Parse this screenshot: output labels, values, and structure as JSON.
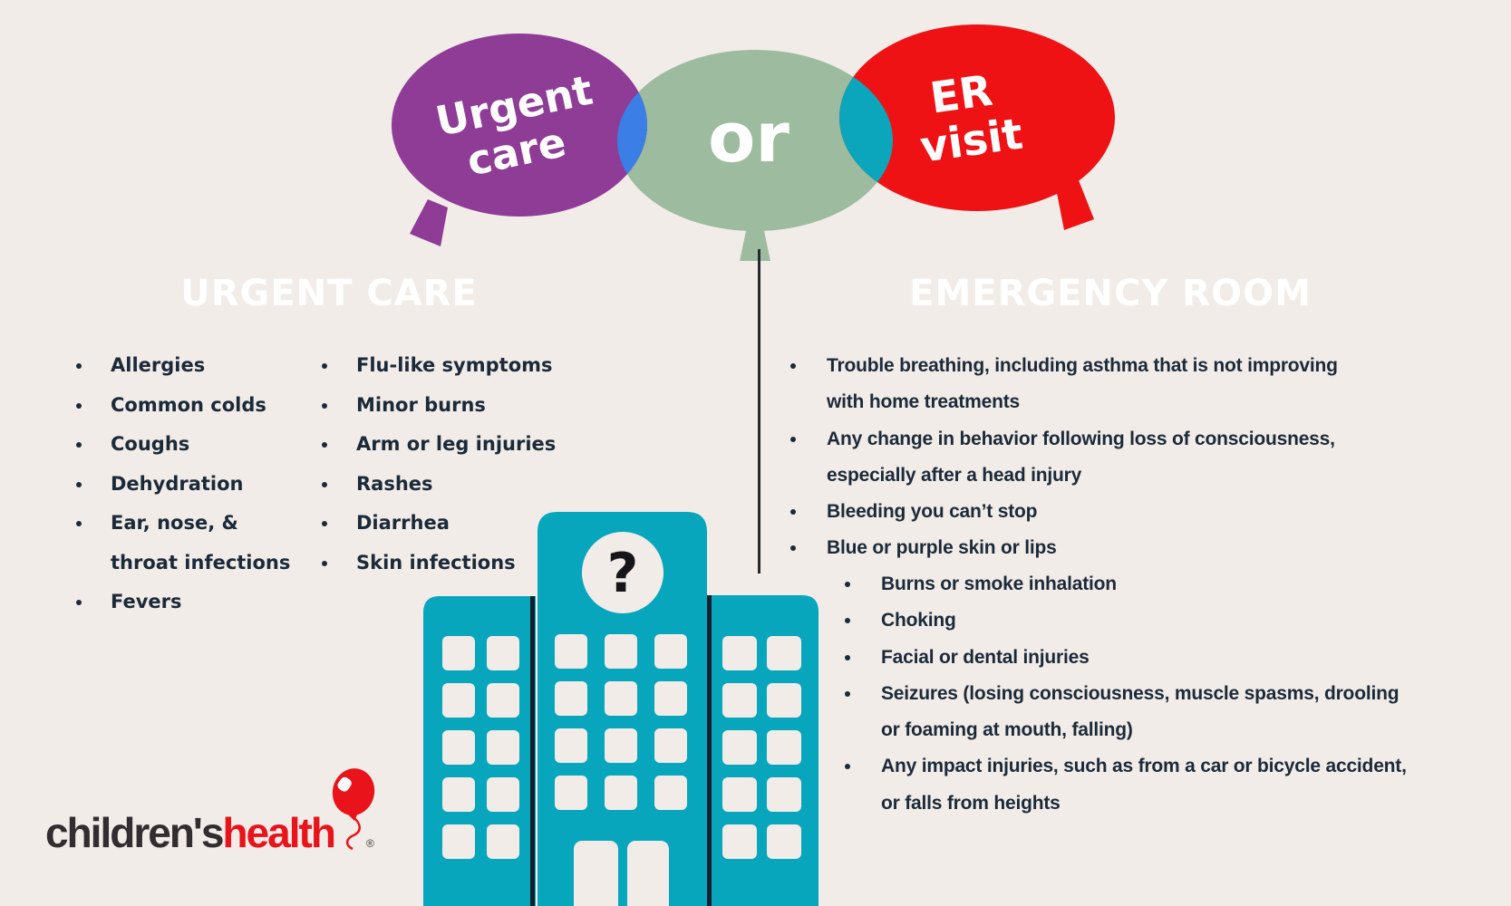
{
  "colors": {
    "background": "#f2ece8",
    "purple": "#8e3c96",
    "sage": "#9dbc9f",
    "red": "#ee1215",
    "blue_overlap": "#3b7ee6",
    "teal_overlap": "#0ba6bb",
    "pink_pill": "#ee8ee2",
    "salmon_pill": "#f6917f",
    "building_teal": "#07a6bd",
    "building_line": "#14202e",
    "divider": "#28282e",
    "text_dark": "#1b2a39",
    "question_mark_color": "#16161a",
    "logo_red": "#e8131b",
    "logo_dark": "#322d30"
  },
  "balloons": {
    "urgent_line1": "Urgent",
    "urgent_line2": "care",
    "or_label": "or",
    "er_line1": "ER",
    "er_line2": "visit"
  },
  "urgent_care": {
    "header": "URGENT CARE",
    "column1": [
      [
        "Allergies"
      ],
      [
        "Common colds"
      ],
      [
        "Coughs"
      ],
      [
        "Dehydration"
      ],
      [
        "Ear, nose, &",
        "throat infections"
      ],
      [
        "Fevers"
      ]
    ],
    "column2": [
      [
        "Flu-like symptoms"
      ],
      [
        "Minor burns"
      ],
      [
        "Arm or leg injuries"
      ],
      [
        "Rashes"
      ],
      [
        "Diarrhea"
      ],
      [
        "Skin infections"
      ]
    ]
  },
  "emergency_room": {
    "header": "EMERGENCY ROOM",
    "items": [
      [
        "Trouble breathing, including asthma that is not improving",
        "with home treatments"
      ],
      [
        "Any change in behavior following loss of consciousness,",
        "especially after a head injury"
      ],
      [
        "Bleeding you can’t stop"
      ],
      [
        "Blue or purple skin or lips"
      ]
    ],
    "sub_items": [
      [
        "Burns or smoke inhalation"
      ],
      [
        "Choking"
      ],
      [
        "Facial or dental injuries"
      ],
      [
        "Seizures (losing consciousness, muscle spasms, drooling",
        "or foaming at mouth, falling)"
      ],
      [
        "Any impact injuries, such as from a car or bicycle accident,",
        "or falls from heights"
      ]
    ]
  },
  "building": {
    "question_mark": "?"
  },
  "logo": {
    "part1": "children's",
    "part2": "health",
    "registered": "®"
  }
}
